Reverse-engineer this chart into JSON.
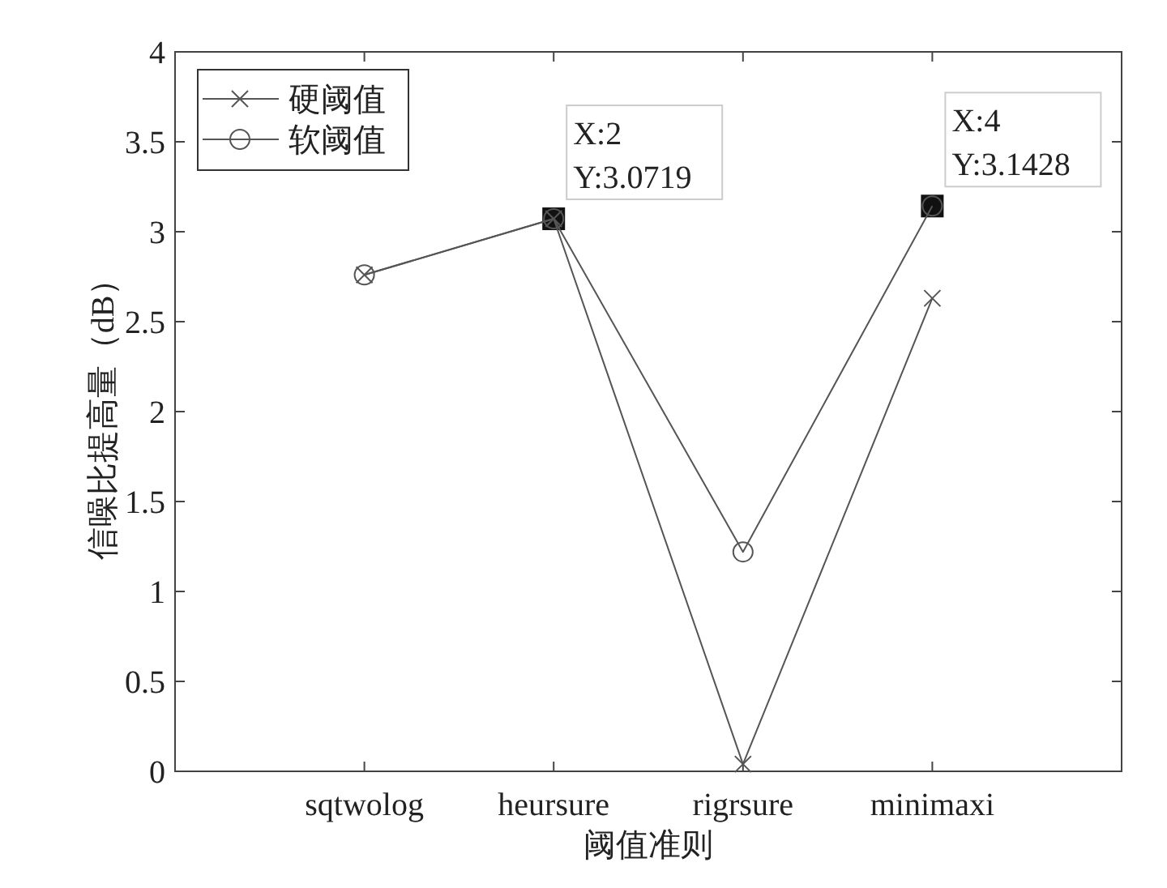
{
  "chart_data": {
    "type": "line",
    "xlabel": "阈值准则",
    "ylabel": "信噪比提高量（dB）",
    "categories": [
      "sqtwolog",
      "heursure",
      "rigrsure",
      "minimaxi"
    ],
    "ylim": [
      0,
      4
    ],
    "yticks": [
      0,
      0.5,
      1,
      1.5,
      2,
      2.5,
      3,
      3.5,
      4
    ],
    "series": [
      {
        "name": "硬阈值",
        "color": "#555555",
        "marker": "cross",
        "values": [
          2.76,
          3.0719,
          0.04,
          2.63
        ]
      },
      {
        "name": "软阈值",
        "color": "#555555",
        "marker": "circle",
        "values": [
          2.76,
          3.0719,
          1.22,
          3.1428
        ]
      }
    ],
    "annotations": [
      {
        "text": "X:2\nY:3.0719",
        "x": "heursure",
        "y": 3.0719
      },
      {
        "text": "X:4\nY:3.1428",
        "x": "minimaxi",
        "y": 3.1428
      }
    ],
    "legend": "top left",
    "grid": false,
    "line_style": "solid"
  }
}
